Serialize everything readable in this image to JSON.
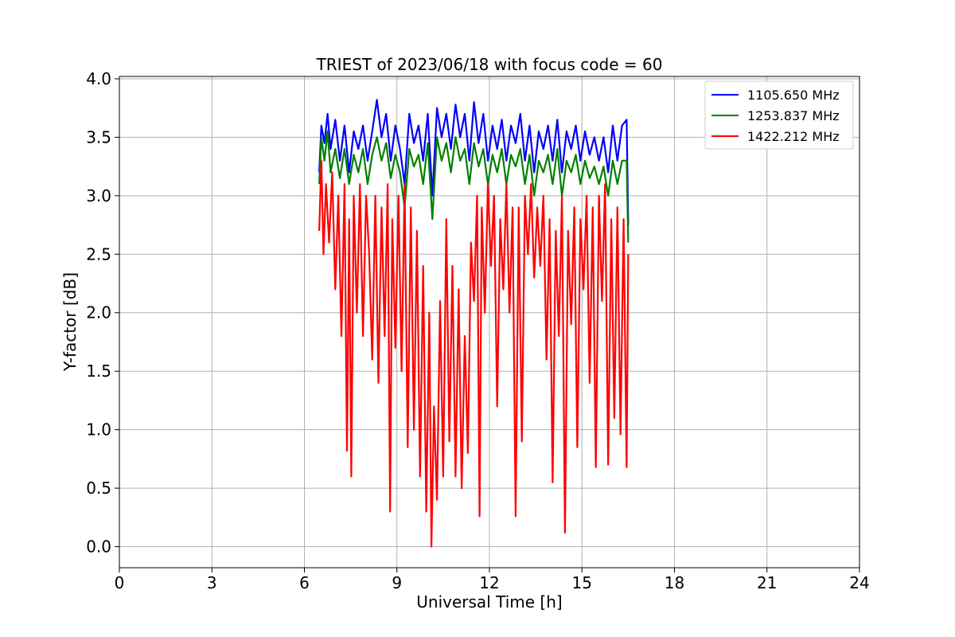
{
  "chart_data": {
    "type": "line",
    "title": "TRIEST of 2023/06/18 with focus code = 60",
    "xlabel": "Universal Time [h]",
    "ylabel": "Y-factor [dB]",
    "xlim": [
      0,
      24
    ],
    "ylim": [
      -0.18,
      4.02
    ],
    "x_ticks": [
      0,
      3,
      6,
      9,
      12,
      15,
      18,
      21,
      24
    ],
    "y_ticks": [
      0.0,
      0.5,
      1.0,
      1.5,
      2.0,
      2.5,
      3.0,
      3.5,
      4.0
    ],
    "x_tick_labels": [
      "0",
      "3",
      "6",
      "9",
      "12",
      "15",
      "18",
      "21",
      "24"
    ],
    "y_tick_labels": [
      "0.0",
      "0.5",
      "1.0",
      "1.5",
      "2.0",
      "2.5",
      "3.0",
      "3.5",
      "4.0"
    ],
    "grid": true,
    "legend_position": "top-right",
    "series": [
      {
        "name": "1105.650 MHz",
        "color": "#0000ff",
        "x": [
          6.48,
          6.55,
          6.65,
          6.75,
          6.85,
          7.0,
          7.15,
          7.3,
          7.45,
          7.6,
          7.75,
          7.9,
          8.05,
          8.2,
          8.35,
          8.5,
          8.65,
          8.8,
          8.95,
          9.1,
          9.25,
          9.4,
          9.55,
          9.7,
          9.85,
          10.0,
          10.15,
          10.3,
          10.45,
          10.6,
          10.75,
          10.9,
          11.05,
          11.2,
          11.35,
          11.5,
          11.65,
          11.8,
          11.95,
          12.1,
          12.25,
          12.4,
          12.55,
          12.7,
          12.85,
          13.0,
          13.15,
          13.3,
          13.45,
          13.6,
          13.75,
          13.9,
          14.05,
          14.2,
          14.35,
          14.5,
          14.65,
          14.8,
          14.95,
          15.1,
          15.25,
          15.4,
          15.55,
          15.7,
          15.85,
          16.0,
          16.15,
          16.3,
          16.45,
          16.5
        ],
        "y": [
          3.2,
          3.6,
          3.45,
          3.7,
          3.4,
          3.65,
          3.3,
          3.6,
          3.2,
          3.55,
          3.4,
          3.6,
          3.3,
          3.55,
          3.82,
          3.5,
          3.7,
          3.3,
          3.6,
          3.4,
          3.1,
          3.7,
          3.45,
          3.6,
          3.3,
          3.7,
          3.0,
          3.75,
          3.5,
          3.7,
          3.4,
          3.78,
          3.5,
          3.7,
          3.3,
          3.8,
          3.45,
          3.7,
          3.3,
          3.6,
          3.4,
          3.65,
          3.3,
          3.6,
          3.45,
          3.7,
          3.3,
          3.6,
          3.2,
          3.55,
          3.4,
          3.6,
          3.3,
          3.65,
          3.2,
          3.55,
          3.4,
          3.6,
          3.3,
          3.55,
          3.35,
          3.5,
          3.3,
          3.5,
          3.2,
          3.6,
          3.3,
          3.6,
          3.65,
          2.75
        ]
      },
      {
        "name": "1253.837 MHz",
        "color": "#008000",
        "x": [
          6.48,
          6.55,
          6.65,
          6.75,
          6.85,
          7.0,
          7.15,
          7.3,
          7.45,
          7.6,
          7.75,
          7.9,
          8.05,
          8.2,
          8.35,
          8.5,
          8.65,
          8.8,
          8.95,
          9.1,
          9.25,
          9.4,
          9.55,
          9.7,
          9.85,
          10.0,
          10.15,
          10.3,
          10.45,
          10.6,
          10.75,
          10.9,
          11.05,
          11.2,
          11.35,
          11.5,
          11.65,
          11.8,
          11.95,
          12.1,
          12.25,
          12.4,
          12.55,
          12.7,
          12.85,
          13.0,
          13.15,
          13.3,
          13.45,
          13.6,
          13.75,
          13.9,
          14.05,
          14.2,
          14.35,
          14.5,
          14.65,
          14.8,
          14.95,
          15.1,
          15.25,
          15.4,
          15.55,
          15.7,
          15.85,
          16.0,
          16.15,
          16.3,
          16.45,
          16.5
        ],
        "y": [
          3.1,
          3.5,
          3.3,
          3.55,
          3.2,
          3.4,
          3.15,
          3.4,
          3.1,
          3.35,
          3.2,
          3.4,
          3.1,
          3.35,
          3.5,
          3.3,
          3.45,
          3.15,
          3.35,
          3.2,
          2.9,
          3.4,
          3.25,
          3.35,
          3.1,
          3.45,
          2.8,
          3.5,
          3.3,
          3.45,
          3.2,
          3.5,
          3.3,
          3.4,
          3.1,
          3.45,
          3.25,
          3.4,
          3.1,
          3.35,
          3.2,
          3.4,
          3.1,
          3.35,
          3.25,
          3.4,
          3.1,
          3.35,
          3.0,
          3.3,
          3.2,
          3.35,
          3.1,
          3.4,
          3.0,
          3.3,
          3.2,
          3.35,
          3.1,
          3.3,
          3.15,
          3.25,
          3.1,
          3.25,
          3.0,
          3.3,
          3.1,
          3.3,
          3.3,
          2.6
        ]
      },
      {
        "name": "1422.212 MHz",
        "color": "#ff0000",
        "x": [
          6.48,
          6.55,
          6.62,
          6.7,
          6.8,
          6.9,
          7.0,
          7.1,
          7.2,
          7.3,
          7.38,
          7.45,
          7.52,
          7.6,
          7.7,
          7.8,
          7.9,
          8.0,
          8.1,
          8.2,
          8.3,
          8.4,
          8.5,
          8.6,
          8.7,
          8.78,
          8.85,
          8.95,
          9.05,
          9.15,
          9.25,
          9.35,
          9.45,
          9.55,
          9.65,
          9.75,
          9.85,
          9.95,
          10.05,
          10.12,
          10.2,
          10.3,
          10.4,
          10.5,
          10.6,
          10.7,
          10.8,
          10.9,
          11.0,
          11.1,
          11.2,
          11.3,
          11.4,
          11.5,
          11.6,
          11.68,
          11.75,
          11.85,
          11.95,
          12.05,
          12.15,
          12.25,
          12.35,
          12.45,
          12.55,
          12.65,
          12.75,
          12.85,
          12.95,
          13.05,
          13.15,
          13.25,
          13.35,
          13.45,
          13.55,
          13.65,
          13.75,
          13.85,
          13.95,
          14.05,
          14.15,
          14.25,
          14.35,
          14.45,
          14.55,
          14.65,
          14.75,
          14.85,
          14.95,
          15.05,
          15.15,
          15.25,
          15.35,
          15.45,
          15.55,
          15.65,
          15.75,
          15.85,
          15.95,
          16.05,
          16.15,
          16.25,
          16.35,
          16.45,
          16.5
        ],
        "y": [
          2.7,
          3.3,
          2.5,
          3.1,
          2.6,
          3.2,
          2.2,
          3.0,
          1.8,
          3.1,
          0.82,
          2.8,
          0.6,
          3.0,
          2.0,
          3.1,
          1.8,
          3.0,
          2.5,
          1.6,
          3.0,
          1.4,
          2.9,
          1.8,
          3.1,
          0.3,
          2.8,
          1.7,
          3.0,
          1.5,
          3.1,
          0.85,
          2.9,
          1.0,
          2.7,
          0.6,
          2.4,
          0.3,
          2.0,
          0.0,
          1.2,
          0.4,
          2.1,
          0.6,
          2.8,
          0.9,
          2.4,
          0.6,
          2.2,
          0.5,
          1.8,
          0.8,
          2.6,
          2.1,
          3.0,
          0.26,
          2.9,
          2.0,
          3.1,
          2.4,
          3.0,
          1.2,
          2.8,
          2.2,
          3.1,
          2.0,
          2.9,
          0.26,
          2.9,
          0.9,
          3.0,
          2.5,
          3.1,
          2.3,
          2.9,
          2.4,
          3.0,
          1.6,
          2.8,
          0.55,
          2.7,
          1.8,
          3.0,
          0.12,
          2.7,
          1.9,
          2.9,
          0.85,
          2.8,
          2.2,
          3.0,
          1.4,
          2.9,
          0.68,
          3.0,
          2.1,
          3.1,
          0.7,
          2.8,
          1.1,
          2.9,
          0.96,
          2.8,
          0.68,
          2.5
        ]
      }
    ]
  }
}
